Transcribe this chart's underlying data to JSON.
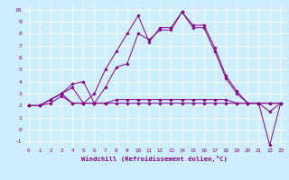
{
  "xlabel": "Windchill (Refroidissement éolien,°C)",
  "bg_color": "#cceeff",
  "line_color": "#880088",
  "xlim": [
    -0.5,
    23.5
  ],
  "ylim": [
    -1.5,
    10.5
  ],
  "xticks": [
    0,
    1,
    2,
    3,
    4,
    5,
    6,
    7,
    8,
    9,
    10,
    11,
    12,
    13,
    14,
    15,
    16,
    17,
    18,
    19,
    20,
    21,
    22,
    23
  ],
  "yticks": [
    -1,
    0,
    1,
    2,
    3,
    4,
    5,
    6,
    7,
    8,
    9,
    10
  ],
  "series1": [
    2.0,
    2.0,
    2.5,
    3.0,
    3.5,
    2.2,
    3.0,
    5.0,
    6.5,
    8.0,
    9.5,
    7.3,
    8.5,
    8.5,
    9.8,
    8.7,
    8.7,
    6.8,
    4.5,
    3.2,
    2.2,
    2.2,
    1.5,
    2.2
  ],
  "series2": [
    2.0,
    2.0,
    2.5,
    3.0,
    3.8,
    4.0,
    2.2,
    3.5,
    5.2,
    5.5,
    8.0,
    7.5,
    8.3,
    8.3,
    9.8,
    8.5,
    8.5,
    6.5,
    4.3,
    3.0,
    2.2,
    2.2,
    -1.3,
    2.2
  ],
  "series3": [
    2.0,
    2.0,
    2.5,
    3.0,
    2.2,
    2.2,
    2.2,
    2.2,
    2.5,
    2.5,
    2.5,
    2.5,
    2.5,
    2.5,
    2.5,
    2.5,
    2.5,
    2.5,
    2.5,
    2.2,
    2.2,
    2.2,
    2.2,
    2.2
  ],
  "series4": [
    2.0,
    2.0,
    2.2,
    2.8,
    2.2,
    2.2,
    2.2,
    2.2,
    2.2,
    2.2,
    2.2,
    2.2,
    2.2,
    2.2,
    2.2,
    2.2,
    2.2,
    2.2,
    2.2,
    2.2,
    2.2,
    2.2,
    2.2,
    2.2
  ]
}
